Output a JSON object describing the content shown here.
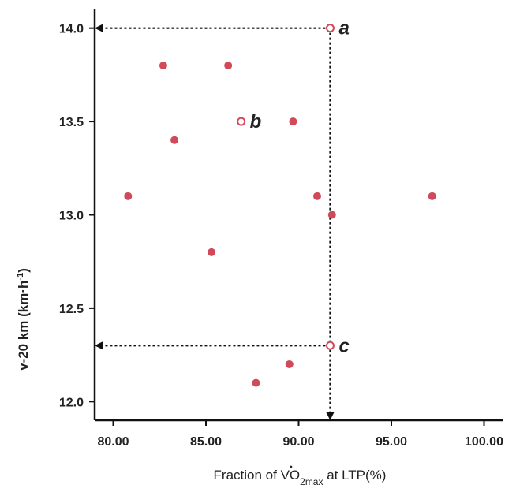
{
  "chart_data": {
    "type": "scatter",
    "title": "",
    "xlabel": {
      "prefix": "Fraction of V",
      "dot_letter": "O",
      "subscript": "2max",
      "suffix": " at LTP(%)"
    },
    "ylabel": {
      "main": "v-20 km (km·h",
      "superscript": "-1",
      "close": ")"
    },
    "xlim": [
      79,
      101
    ],
    "ylim": [
      11.9,
      14.1
    ],
    "x_ticks": [
      80,
      85,
      90,
      95,
      100
    ],
    "x_tick_labels": [
      "80.00",
      "85.00",
      "90.00",
      "95.00",
      "100.00"
    ],
    "y_ticks": [
      12.0,
      12.5,
      13.0,
      13.5,
      14.0
    ],
    "y_tick_labels": [
      "12.0",
      "12.5",
      "13.0",
      "13.5",
      "14.0"
    ],
    "point_color": "#d14a5a",
    "arrow_color": "#111111",
    "grid": false,
    "points": [
      {
        "x": 91.7,
        "y": 14.0,
        "hollow": true,
        "label": "a"
      },
      {
        "x": 82.7,
        "y": 13.8,
        "hollow": false,
        "label": ""
      },
      {
        "x": 86.2,
        "y": 13.8,
        "hollow": false,
        "label": ""
      },
      {
        "x": 86.9,
        "y": 13.5,
        "hollow": true,
        "label": "b"
      },
      {
        "x": 89.7,
        "y": 13.5,
        "hollow": false,
        "label": ""
      },
      {
        "x": 83.3,
        "y": 13.4,
        "hollow": false,
        "label": ""
      },
      {
        "x": 80.8,
        "y": 13.1,
        "hollow": false,
        "label": ""
      },
      {
        "x": 91.0,
        "y": 13.1,
        "hollow": false,
        "label": ""
      },
      {
        "x": 97.2,
        "y": 13.1,
        "hollow": false,
        "label": ""
      },
      {
        "x": 91.8,
        "y": 13.0,
        "hollow": false,
        "label": ""
      },
      {
        "x": 85.3,
        "y": 12.8,
        "hollow": false,
        "label": ""
      },
      {
        "x": 91.7,
        "y": 12.3,
        "hollow": true,
        "label": "c"
      },
      {
        "x": 89.5,
        "y": 12.2,
        "hollow": false,
        "label": ""
      },
      {
        "x": 87.7,
        "y": 12.1,
        "hollow": false,
        "label": ""
      }
    ],
    "reference_arrows": [
      {
        "from": {
          "x": 91.7,
          "y": 14.0
        },
        "to": {
          "x": 79,
          "y": 14.0
        }
      },
      {
        "from": {
          "x": 91.7,
          "y": 14.0
        },
        "to": {
          "x": 91.7,
          "y": 11.9
        }
      },
      {
        "from": {
          "x": 91.7,
          "y": 12.3
        },
        "to": {
          "x": 79,
          "y": 12.3
        }
      }
    ]
  }
}
